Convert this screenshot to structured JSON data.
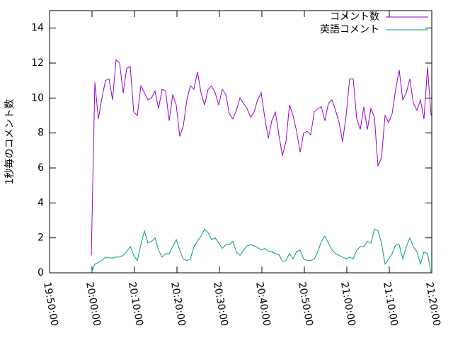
{
  "chart_data": {
    "type": "line",
    "y_label": "1秒毎のコメント数",
    "x": [
      "19:59:50",
      "20:00:40",
      "20:01:30",
      "20:02:20",
      "20:03:10",
      "20:04:00",
      "20:04:50",
      "20:05:40",
      "20:06:30",
      "20:07:20",
      "20:08:10",
      "20:09:00",
      "20:09:50",
      "20:10:40",
      "20:11:30",
      "20:12:20",
      "20:13:10",
      "20:14:00",
      "20:14:50",
      "20:15:40",
      "20:16:30",
      "20:17:20",
      "20:18:10",
      "20:19:00",
      "20:19:50",
      "20:20:40",
      "20:21:30",
      "20:22:20",
      "20:23:10",
      "20:24:00",
      "20:24:50",
      "20:25:40",
      "20:26:30",
      "20:27:20",
      "20:28:10",
      "20:29:00",
      "20:29:50",
      "20:30:40",
      "20:31:30",
      "20:32:20",
      "20:33:10",
      "20:34:00",
      "20:34:50",
      "20:35:40",
      "20:36:30",
      "20:37:20",
      "20:38:10",
      "20:39:00",
      "20:39:50",
      "20:40:40",
      "20:41:30",
      "20:42:20",
      "20:43:10",
      "20:44:00",
      "20:44:50",
      "20:45:40",
      "20:46:30",
      "20:47:20",
      "20:48:10",
      "20:49:00",
      "20:49:50",
      "20:50:40",
      "20:51:30",
      "20:52:20",
      "20:53:10",
      "20:54:00",
      "20:54:50",
      "20:55:40",
      "20:56:30",
      "20:57:20",
      "20:58:10",
      "20:59:00",
      "20:59:50",
      "21:00:40",
      "21:01:30",
      "21:02:20",
      "21:03:10",
      "21:04:00",
      "21:04:50",
      "21:05:40",
      "21:06:30",
      "21:07:20",
      "21:08:10",
      "21:09:00",
      "21:09:50",
      "21:10:40",
      "21:11:30",
      "21:12:20",
      "21:13:10",
      "21:14:00",
      "21:14:50",
      "21:15:40",
      "21:16:30",
      "21:17:20",
      "21:18:10",
      "21:19:00",
      "21:19:50"
    ],
    "series": [
      {
        "name": "コメント数",
        "color": "#9400d3",
        "values": [
          1.0,
          10.9,
          8.8,
          10.0,
          11.0,
          11.1,
          9.9,
          12.2,
          12.0,
          10.3,
          11.7,
          11.8,
          9.2,
          9.0,
          10.7,
          10.3,
          9.9,
          10.0,
          10.4,
          9.4,
          10.5,
          10.4,
          8.7,
          10.2,
          9.6,
          7.8,
          8.4,
          9.9,
          10.7,
          10.5,
          11.5,
          10.3,
          9.6,
          10.5,
          10.7,
          10.3,
          9.6,
          10.5,
          10.2,
          9.1,
          8.8,
          9.3,
          10.0,
          9.7,
          9.4,
          8.9,
          9.2,
          9.9,
          10.3,
          8.9,
          7.7,
          8.7,
          9.2,
          7.9,
          6.7,
          7.5,
          9.6,
          9.0,
          8.1,
          6.9,
          8.0,
          8.1,
          7.9,
          9.2,
          9.4,
          9.5,
          8.7,
          9.7,
          9.9,
          9.3,
          8.6,
          7.5,
          9.0,
          11.1,
          11.1,
          8.8,
          8.2,
          9.5,
          8.2,
          9.4,
          8.9,
          6.1,
          6.6,
          9.0,
          8.6,
          9.1,
          10.5,
          11.6,
          9.9,
          10.3,
          11.1,
          9.7,
          9.3,
          9.9,
          8.8,
          11.8,
          9.0
        ]
      },
      {
        "name": "英語コメント",
        "color": "#009e73",
        "values": [
          0.0,
          0.5,
          0.6,
          0.7,
          0.9,
          0.85,
          0.85,
          0.9,
          0.9,
          1.0,
          1.2,
          1.5,
          1.0,
          0.7,
          1.6,
          2.4,
          1.7,
          1.8,
          2.0,
          1.3,
          0.9,
          1.1,
          1.1,
          1.5,
          1.9,
          1.3,
          0.8,
          0.7,
          0.8,
          1.5,
          1.8,
          2.1,
          2.5,
          2.3,
          1.9,
          2.0,
          1.7,
          1.4,
          1.6,
          1.6,
          1.8,
          1.2,
          1.0,
          1.3,
          1.55,
          1.6,
          1.55,
          1.45,
          1.3,
          1.4,
          1.25,
          1.2,
          1.1,
          1.05,
          0.65,
          0.7,
          1.1,
          0.8,
          1.2,
          1.3,
          0.8,
          0.7,
          0.7,
          0.8,
          1.2,
          1.8,
          2.1,
          1.7,
          1.3,
          1.1,
          1.0,
          0.9,
          0.8,
          0.9,
          0.8,
          1.3,
          1.5,
          1.5,
          1.8,
          1.7,
          2.5,
          2.4,
          1.7,
          0.5,
          0.8,
          1.1,
          1.6,
          1.6,
          0.8,
          1.5,
          2.0,
          1.5,
          1.2,
          0.5,
          1.2,
          1.1,
          0.0
        ]
      }
    ],
    "xlim": [
      "19:50:00",
      "21:20:00"
    ],
    "xticks": [
      "19:50:00",
      "20:00:00",
      "20:10:00",
      "20:20:00",
      "20:30:00",
      "20:40:00",
      "20:50:00",
      "21:00:00",
      "21:10:00",
      "21:20:00"
    ],
    "ylim": [
      0,
      15
    ],
    "yticks": [
      0,
      2,
      4,
      6,
      8,
      10,
      12,
      14
    ],
    "grid": false,
    "legend": "top-right"
  }
}
